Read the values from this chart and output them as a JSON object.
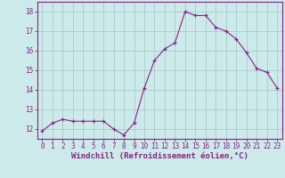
{
  "x": [
    0,
    1,
    2,
    3,
    4,
    5,
    6,
    7,
    8,
    9,
    10,
    11,
    12,
    13,
    14,
    15,
    16,
    17,
    18,
    19,
    20,
    21,
    22,
    23
  ],
  "y": [
    11.9,
    12.3,
    12.5,
    12.4,
    12.4,
    12.4,
    12.4,
    12.0,
    11.7,
    12.3,
    14.1,
    15.5,
    16.1,
    16.4,
    18.0,
    17.8,
    17.8,
    17.2,
    17.0,
    16.6,
    15.9,
    15.1,
    14.9,
    14.1
  ],
  "line_color": "#882288",
  "marker": "+",
  "marker_color": "#882288",
  "bg_color": "#cceaea",
  "grid_color": "#aacccc",
  "xlabel": "Windchill (Refroidissement éolien,°C)",
  "xlabel_color": "#882288",
  "tick_color": "#882288",
  "xlim": [
    -0.5,
    23.5
  ],
  "ylim": [
    11.5,
    18.5
  ],
  "yticks": [
    12,
    13,
    14,
    15,
    16,
    17,
    18
  ],
  "xticks": [
    0,
    1,
    2,
    3,
    4,
    5,
    6,
    7,
    8,
    9,
    10,
    11,
    12,
    13,
    14,
    15,
    16,
    17,
    18,
    19,
    20,
    21,
    22,
    23
  ],
  "xtick_labels": [
    "0",
    "1",
    "2",
    "3",
    "4",
    "5",
    "6",
    "7",
    "8",
    "9",
    "10",
    "11",
    "12",
    "13",
    "14",
    "15",
    "16",
    "17",
    "18",
    "19",
    "20",
    "21",
    "22",
    "23"
  ],
  "spine_color": "#882288",
  "font_family": "monospace",
  "tick_fontsize": 5.5,
  "xlabel_fontsize": 6.5
}
